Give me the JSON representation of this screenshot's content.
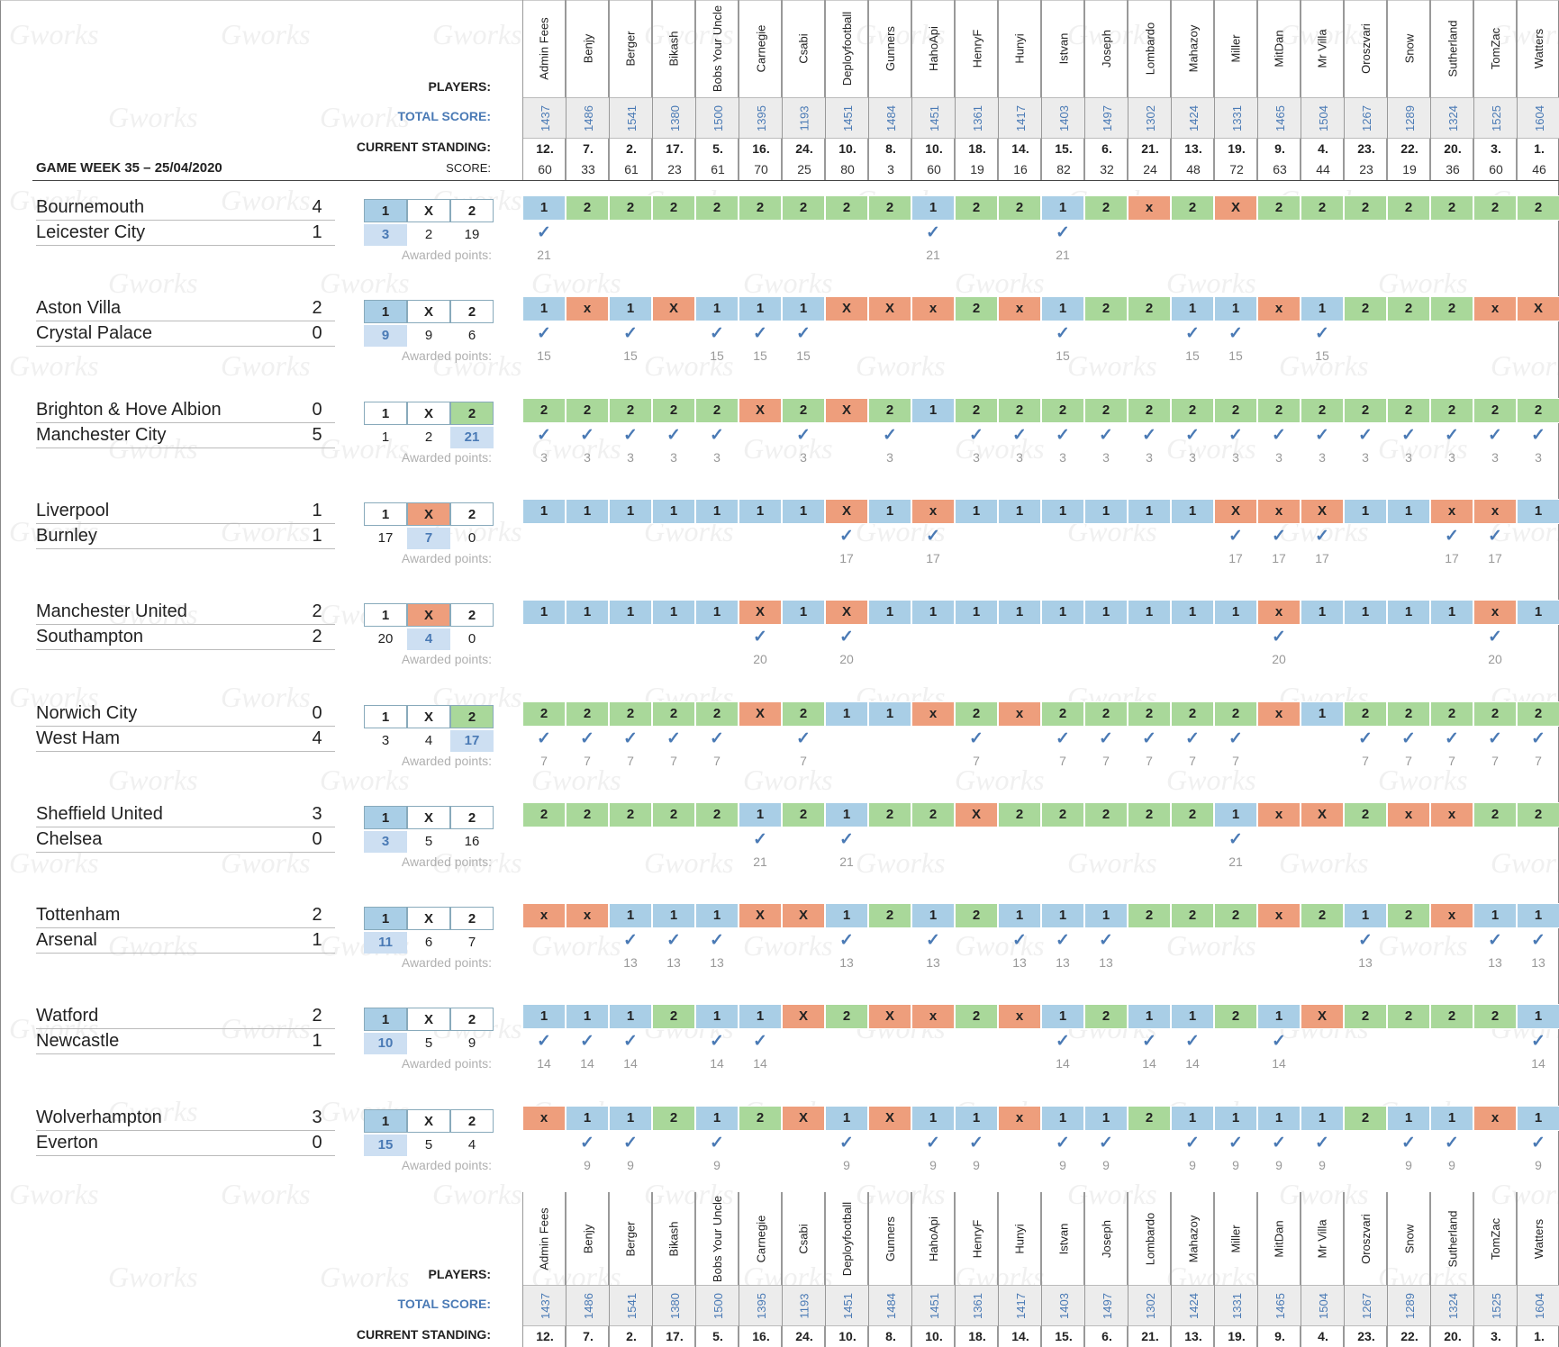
{
  "title": "GAME WEEK 35 – 25/04/2020",
  "labels": {
    "players": "PLAYERS:",
    "total_score": "TOTAL SCORE:",
    "current_standing": "CURRENT STANDING:",
    "score": "SCORE:",
    "awarded_points": "Awarded points:",
    "one": "1",
    "draw": "X",
    "two": "2",
    "tick": "✓"
  },
  "watermark": "Gworks",
  "colors": {
    "home": "#a9cee6",
    "draw": "#ee9e7c",
    "away": "#a9d89a",
    "accent": "#4a7ab5"
  },
  "players": [
    {
      "name": "Admin Fees",
      "total": "1437",
      "standing": "12.",
      "score": "60"
    },
    {
      "name": "Benjy",
      "total": "1486",
      "standing": "7.",
      "score": "33"
    },
    {
      "name": "Berger",
      "total": "1541",
      "standing": "2.",
      "score": "61"
    },
    {
      "name": "Bikash",
      "total": "1380",
      "standing": "17.",
      "score": "23"
    },
    {
      "name": "Bobs Your Uncle",
      "total": "1500",
      "standing": "5.",
      "score": "61"
    },
    {
      "name": "Carnegie",
      "total": "1395",
      "standing": "16.",
      "score": "70"
    },
    {
      "name": "Csabi",
      "total": "1193",
      "standing": "24.",
      "score": "25"
    },
    {
      "name": "Deployfootball",
      "total": "1451",
      "standing": "10.",
      "score": "80"
    },
    {
      "name": "Gunners",
      "total": "1484",
      "standing": "8.",
      "score": "3"
    },
    {
      "name": "HahoApi",
      "total": "1451",
      "standing": "10.",
      "score": "60"
    },
    {
      "name": "HenryF",
      "total": "1361",
      "standing": "18.",
      "score": "19"
    },
    {
      "name": "Hunyi",
      "total": "1417",
      "standing": "14.",
      "score": "16"
    },
    {
      "name": "Istvan",
      "total": "1403",
      "standing": "15.",
      "score": "82"
    },
    {
      "name": "Joseph",
      "total": "1497",
      "standing": "6.",
      "score": "32"
    },
    {
      "name": "Lombardo",
      "total": "1302",
      "standing": "21.",
      "score": "24"
    },
    {
      "name": "Mahazoy",
      "total": "1424",
      "standing": "13.",
      "score": "48"
    },
    {
      "name": "Miller",
      "total": "1331",
      "standing": "19.",
      "score": "72"
    },
    {
      "name": "MitDan",
      "total": "1465",
      "standing": "9.",
      "score": "63"
    },
    {
      "name": "Mr Villa",
      "total": "1504",
      "standing": "4.",
      "score": "44"
    },
    {
      "name": "Oroszvari",
      "total": "1267",
      "standing": "23.",
      "score": "23"
    },
    {
      "name": "Snow",
      "total": "1289",
      "standing": "22.",
      "score": "19"
    },
    {
      "name": "Sutherland",
      "total": "1324",
      "standing": "20.",
      "score": "36"
    },
    {
      "name": "TomZac",
      "total": "1525",
      "standing": "3.",
      "score": "60"
    },
    {
      "name": "Watters",
      "total": "1604",
      "standing": "1.",
      "score": "46"
    }
  ],
  "matches": [
    {
      "home": "Bournemouth",
      "away": "Leicester City",
      "hg": "4",
      "ag": "1",
      "winner": "1",
      "cnt": [
        "3",
        "2",
        "19"
      ],
      "points": "21",
      "picks": [
        "1",
        "2",
        "2",
        "2",
        "2",
        "2",
        "2",
        "2",
        "2",
        "1",
        "2",
        "2",
        "1",
        "2",
        "x",
        "2",
        "X",
        "2",
        "2",
        "2",
        "2",
        "2",
        "2",
        "2"
      ]
    },
    {
      "home": "Aston Villa",
      "away": "Crystal Palace",
      "hg": "2",
      "ag": "0",
      "winner": "1",
      "cnt": [
        "9",
        "9",
        "6"
      ],
      "points": "15",
      "picks": [
        "1",
        "x",
        "1",
        "X",
        "1",
        "1",
        "1",
        "X",
        "X",
        "x",
        "2",
        "x",
        "1",
        "2",
        "2",
        "1",
        "1",
        "x",
        "1",
        "2",
        "2",
        "2",
        "x",
        "X"
      ]
    },
    {
      "home": "Brighton & Hove Albion",
      "away": "Manchester City",
      "hg": "0",
      "ag": "5",
      "winner": "2",
      "cnt": [
        "1",
        "2",
        "21"
      ],
      "points": "3",
      "picks": [
        "2",
        "2",
        "2",
        "2",
        "2",
        "X",
        "2",
        "X",
        "2",
        "1",
        "2",
        "2",
        "2",
        "2",
        "2",
        "2",
        "2",
        "2",
        "2",
        "2",
        "2",
        "2",
        "2",
        "2"
      ]
    },
    {
      "home": "Liverpool",
      "away": "Burnley",
      "hg": "1",
      "ag": "1",
      "winner": "X",
      "cnt": [
        "17",
        "7",
        "0"
      ],
      "points": "17",
      "picks": [
        "1",
        "1",
        "1",
        "1",
        "1",
        "1",
        "1",
        "X",
        "1",
        "x",
        "1",
        "1",
        "1",
        "1",
        "1",
        "1",
        "X",
        "x",
        "X",
        "1",
        "1",
        "x",
        "x",
        "1"
      ]
    },
    {
      "home": "Manchester United",
      "away": "Southampton",
      "hg": "2",
      "ag": "2",
      "winner": "X",
      "cnt": [
        "20",
        "4",
        "0"
      ],
      "points": "20",
      "picks": [
        "1",
        "1",
        "1",
        "1",
        "1",
        "X",
        "1",
        "X",
        "1",
        "1",
        "1",
        "1",
        "1",
        "1",
        "1",
        "1",
        "1",
        "x",
        "1",
        "1",
        "1",
        "1",
        "x",
        "1"
      ]
    },
    {
      "home": "Norwich City",
      "away": "West Ham",
      "hg": "0",
      "ag": "4",
      "winner": "2",
      "cnt": [
        "3",
        "4",
        "17"
      ],
      "points": "7",
      "picks": [
        "2",
        "2",
        "2",
        "2",
        "2",
        "X",
        "2",
        "1",
        "1",
        "x",
        "2",
        "x",
        "2",
        "2",
        "2",
        "2",
        "2",
        "x",
        "1",
        "2",
        "2",
        "2",
        "2",
        "2"
      ]
    },
    {
      "home": "Sheffield United",
      "away": "Chelsea",
      "hg": "3",
      "ag": "0",
      "winner": "1",
      "cnt": [
        "3",
        "5",
        "16"
      ],
      "points": "21",
      "picks": [
        "2",
        "2",
        "2",
        "2",
        "2",
        "1",
        "2",
        "1",
        "2",
        "2",
        "X",
        "2",
        "2",
        "2",
        "2",
        "2",
        "1",
        "x",
        "X",
        "2",
        "x",
        "x",
        "2",
        "2"
      ]
    },
    {
      "home": "Tottenham",
      "away": "Arsenal",
      "hg": "2",
      "ag": "1",
      "winner": "1",
      "cnt": [
        "11",
        "6",
        "7"
      ],
      "points": "13",
      "picks": [
        "x",
        "x",
        "1",
        "1",
        "1",
        "X",
        "X",
        "1",
        "2",
        "1",
        "2",
        "1",
        "1",
        "1",
        "2",
        "2",
        "2",
        "x",
        "2",
        "1",
        "2",
        "x",
        "1",
        "1"
      ]
    },
    {
      "home": "Watford",
      "away": "Newcastle",
      "hg": "2",
      "ag": "1",
      "winner": "1",
      "cnt": [
        "10",
        "5",
        "9"
      ],
      "points": "14",
      "picks": [
        "1",
        "1",
        "1",
        "2",
        "1",
        "1",
        "X",
        "2",
        "X",
        "x",
        "2",
        "x",
        "1",
        "2",
        "1",
        "1",
        "2",
        "1",
        "X",
        "2",
        "2",
        "2",
        "2",
        "1"
      ]
    },
    {
      "home": "Wolverhampton",
      "away": "Everton",
      "hg": "3",
      "ag": "0",
      "winner": "1",
      "cnt": [
        "15",
        "5",
        "4"
      ],
      "points": "9",
      "picks": [
        "x",
        "1",
        "1",
        "2",
        "1",
        "2",
        "X",
        "1",
        "X",
        "1",
        "1",
        "x",
        "1",
        "1",
        "2",
        "1",
        "1",
        "1",
        "1",
        "2",
        "1",
        "1",
        "x",
        "1"
      ]
    }
  ]
}
